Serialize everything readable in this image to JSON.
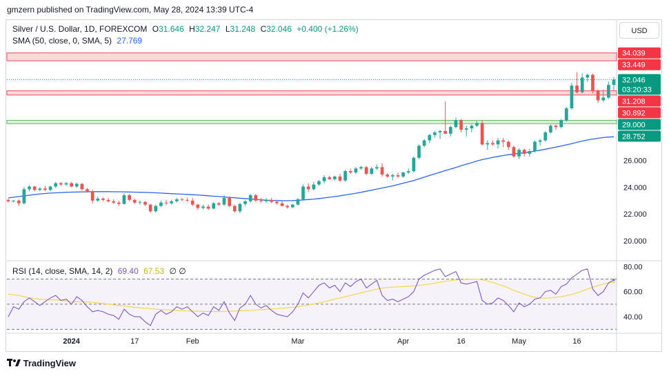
{
  "header": {
    "text": "gmzern published on TradingView.com, May 28, 2024 13:39 UTC-4"
  },
  "legend": {
    "symbol": "Silver / U.S. Dollar, 1D, FOREXCOM",
    "o_label": "O",
    "o": "31.646",
    "h_label": "H",
    "h": "32.247",
    "l_label": "L",
    "l": "31.248",
    "c_label": "C",
    "c": "32.046",
    "change": "+0.400 (+1.26%)",
    "sma_label": "SMA (50, close, 0, SMA, 5)",
    "sma_value": "27.769",
    "rsi_label": "RSI (14, close, SMA, 14, 2)",
    "rsi_value": "69.40",
    "rsi_sma_value": "67.53",
    "rsi_extra": "∅ ∅"
  },
  "currency_button": "USD",
  "price_badges": [
    {
      "text": "34.039",
      "value": 34.039,
      "color": "#f23645"
    },
    {
      "text": "33.449",
      "value": 33.449,
      "color": "#f23645"
    },
    {
      "text": "32.046",
      "value": 32.046,
      "color": "#089981",
      "sub": "03:20:33"
    },
    {
      "text": "31.208",
      "value": 31.208,
      "color": "#f23645"
    },
    {
      "text": "30.892",
      "value": 30.892,
      "color": "#f23645"
    },
    {
      "text": "29.000",
      "value": 29.0,
      "color": "#089981"
    },
    {
      "text": "28.752",
      "value": 28.752,
      "color": "#089981"
    }
  ],
  "footer": {
    "brand": "TradingView",
    "logo": "tradingview-logo-icon"
  },
  "colors": {
    "up": "#26a69a",
    "down": "#ef5350",
    "sma": "#2962ff",
    "rsi": "#7e57c2",
    "rsi_sma": "#f5d847",
    "resistance_fill": "#fbd5d5",
    "resistance_line": "#f23645",
    "support_fill": "#d6f1d8",
    "support_line": "#4caf50"
  },
  "chart_data": [
    {
      "type": "candlestick",
      "title": "Silver / U.S. Dollar, 1D, FOREXCOM",
      "x_ticks": [
        "2024",
        "17",
        "Feb",
        "Mar",
        "Apr",
        "16",
        "May",
        "16"
      ],
      "y_ticks": [
        "20.000",
        "22.000",
        "24.000",
        "26.000"
      ],
      "ylim": [
        18.5,
        36.5
      ],
      "zones": [
        {
          "kind": "resistance",
          "from": 33.449,
          "to": 34.039
        },
        {
          "kind": "resistance",
          "from": 30.892,
          "to": 31.208
        },
        {
          "kind": "support",
          "from": 28.752,
          "to": 29.0
        }
      ],
      "current_price": 32.046,
      "candles": [
        [
          23.05,
          23.15,
          22.85,
          22.95
        ],
        [
          22.95,
          23.05,
          22.85,
          23.0
        ],
        [
          23.0,
          23.1,
          22.6,
          22.8
        ],
        [
          22.8,
          24.0,
          22.7,
          23.85
        ],
        [
          23.85,
          24.15,
          23.7,
          24.05
        ],
        [
          24.05,
          24.1,
          23.7,
          23.8
        ],
        [
          23.8,
          24.0,
          23.7,
          23.9
        ],
        [
          23.9,
          24.1,
          23.7,
          23.8
        ],
        [
          23.8,
          24.1,
          23.7,
          24.05
        ],
        [
          24.05,
          24.4,
          23.95,
          24.3
        ],
        [
          24.3,
          24.4,
          24.1,
          24.2
        ],
        [
          24.2,
          24.4,
          24.1,
          24.3
        ],
        [
          24.3,
          24.4,
          24.0,
          24.05
        ],
        [
          24.05,
          24.35,
          23.95,
          24.25
        ],
        [
          24.25,
          24.3,
          23.75,
          23.85
        ],
        [
          23.85,
          23.95,
          23.6,
          23.7
        ],
        [
          23.7,
          23.8,
          22.8,
          23.0
        ],
        [
          23.0,
          23.3,
          22.9,
          23.15
        ],
        [
          23.15,
          23.25,
          22.95,
          23.05
        ],
        [
          23.05,
          23.2,
          22.85,
          22.95
        ],
        [
          22.95,
          23.1,
          22.75,
          22.85
        ],
        [
          22.85,
          23.0,
          22.6,
          22.75
        ],
        [
          22.75,
          23.55,
          22.7,
          23.4
        ],
        [
          23.4,
          23.5,
          22.95,
          23.05
        ],
        [
          23.05,
          23.15,
          22.75,
          22.85
        ],
        [
          22.85,
          23.0,
          22.7,
          22.9
        ],
        [
          22.9,
          22.95,
          22.6,
          22.7
        ],
        [
          22.7,
          22.75,
          22.1,
          22.2
        ],
        [
          22.2,
          22.7,
          22.1,
          22.6
        ],
        [
          22.6,
          23.0,
          22.5,
          22.85
        ],
        [
          22.85,
          23.05,
          22.65,
          22.8
        ],
        [
          22.8,
          23.05,
          22.7,
          22.95
        ],
        [
          22.95,
          23.2,
          22.85,
          23.1
        ],
        [
          23.1,
          23.2,
          22.95,
          23.05
        ],
        [
          23.05,
          23.2,
          22.9,
          23.0
        ],
        [
          23.0,
          23.2,
          22.6,
          22.7
        ],
        [
          22.7,
          22.75,
          22.3,
          22.45
        ],
        [
          22.45,
          22.7,
          22.35,
          22.55
        ],
        [
          22.55,
          22.7,
          22.3,
          22.4
        ],
        [
          22.4,
          22.9,
          22.35,
          22.8
        ],
        [
          22.8,
          22.9,
          22.6,
          22.7
        ],
        [
          22.7,
          23.4,
          22.6,
          23.2
        ],
        [
          23.2,
          23.3,
          22.5,
          22.6
        ],
        [
          22.6,
          22.7,
          22.1,
          22.2
        ],
        [
          22.2,
          22.85,
          22.05,
          22.75
        ],
        [
          22.75,
          23.05,
          22.6,
          22.95
        ],
        [
          22.95,
          23.5,
          22.85,
          23.4
        ],
        [
          23.4,
          23.5,
          22.9,
          23.0
        ],
        [
          23.0,
          23.2,
          22.85,
          22.95
        ],
        [
          22.95,
          23.2,
          22.85,
          23.05
        ],
        [
          23.05,
          23.2,
          22.8,
          22.9
        ],
        [
          22.9,
          23.0,
          22.7,
          22.8
        ],
        [
          22.8,
          22.95,
          22.55,
          22.6
        ],
        [
          22.6,
          22.7,
          22.4,
          22.5
        ],
        [
          22.5,
          22.75,
          22.45,
          22.7
        ],
        [
          22.7,
          23.2,
          22.65,
          23.1
        ],
        [
          23.1,
          24.2,
          23.0,
          24.05
        ],
        [
          24.05,
          24.3,
          23.65,
          23.85
        ],
        [
          23.85,
          24.4,
          23.75,
          24.2
        ],
        [
          24.2,
          24.55,
          24.1,
          24.45
        ],
        [
          24.45,
          24.9,
          24.3,
          24.75
        ],
        [
          24.75,
          24.85,
          24.55,
          24.6
        ],
        [
          24.6,
          24.85,
          24.5,
          24.8
        ],
        [
          24.8,
          25.0,
          24.4,
          24.5
        ],
        [
          24.5,
          25.3,
          24.4,
          25.2
        ],
        [
          25.2,
          25.4,
          25.0,
          25.1
        ],
        [
          25.1,
          25.5,
          25.0,
          25.4
        ],
        [
          25.4,
          25.6,
          25.3,
          25.5
        ],
        [
          25.5,
          25.6,
          24.9,
          25.0
        ],
        [
          25.0,
          25.5,
          24.9,
          25.4
        ],
        [
          25.4,
          25.7,
          25.3,
          25.5
        ],
        [
          25.5,
          25.8,
          24.8,
          24.95
        ],
        [
          24.95,
          25.05,
          24.7,
          24.8
        ],
        [
          24.8,
          25.0,
          24.5,
          24.9
        ],
        [
          24.9,
          25.1,
          24.7,
          24.8
        ],
        [
          24.8,
          25.15,
          24.7,
          25.1
        ],
        [
          25.1,
          25.4,
          25.0,
          25.2
        ],
        [
          25.2,
          26.3,
          25.1,
          26.2
        ],
        [
          26.2,
          27.2,
          26.1,
          27.1
        ],
        [
          27.1,
          27.6,
          27.0,
          27.5
        ],
        [
          27.5,
          28.0,
          27.3,
          27.9
        ],
        [
          27.9,
          28.2,
          27.7,
          28.1
        ],
        [
          28.1,
          28.3,
          27.6,
          28.2
        ],
        [
          28.2,
          30.4,
          28.0,
          28.0
        ],
        [
          28.0,
          28.6,
          27.8,
          28.5
        ],
        [
          28.5,
          29.2,
          28.4,
          29.0
        ],
        [
          29.0,
          29.1,
          28.1,
          28.3
        ],
        [
          28.3,
          28.6,
          27.8,
          28.4
        ],
        [
          28.4,
          28.7,
          28.1,
          28.6
        ],
        [
          28.6,
          28.95,
          28.5,
          28.8
        ],
        [
          28.8,
          29.0,
          27.1,
          27.2
        ],
        [
          27.2,
          27.5,
          26.8,
          27.3
        ],
        [
          27.3,
          27.5,
          27.1,
          27.2
        ],
        [
          27.2,
          27.7,
          26.9,
          27.5
        ],
        [
          27.5,
          27.7,
          27.0,
          27.4
        ],
        [
          27.4,
          27.5,
          26.8,
          27.0
        ],
        [
          27.0,
          27.1,
          26.2,
          26.3
        ],
        [
          26.3,
          26.9,
          26.1,
          26.8
        ],
        [
          26.8,
          26.9,
          26.3,
          26.5
        ],
        [
          26.5,
          26.85,
          26.3,
          26.7
        ],
        [
          26.7,
          27.5,
          26.6,
          27.4
        ],
        [
          27.4,
          27.6,
          27.1,
          27.5
        ],
        [
          27.5,
          28.2,
          27.4,
          28.1
        ],
        [
          28.1,
          28.7,
          28.0,
          28.6
        ],
        [
          28.6,
          28.7,
          28.3,
          28.5
        ],
        [
          28.5,
          29.1,
          28.4,
          29.0
        ],
        [
          29.0,
          30.0,
          28.9,
          29.9
        ],
        [
          29.9,
          31.8,
          29.8,
          31.6
        ],
        [
          31.6,
          32.6,
          31.0,
          31.1
        ],
        [
          31.1,
          32.5,
          31.0,
          32.2
        ],
        [
          32.2,
          32.5,
          31.9,
          32.4
        ],
        [
          32.4,
          32.5,
          31.0,
          31.2
        ],
        [
          31.2,
          31.3,
          30.3,
          30.5
        ],
        [
          30.5,
          31.3,
          30.4,
          30.7
        ],
        [
          30.7,
          31.9,
          30.6,
          31.646
        ],
        [
          31.646,
          32.247,
          31.248,
          32.046
        ]
      ],
      "series": [
        {
          "name": "SMA (50, close, 0, SMA, 5)",
          "values": [
            23.2,
            23.25,
            23.3,
            23.35,
            23.4,
            23.45,
            23.5,
            23.53,
            23.56,
            23.58,
            23.6,
            23.62,
            23.63,
            23.64,
            23.65,
            23.66,
            23.67,
            23.67,
            23.67,
            23.67,
            23.66,
            23.66,
            23.65,
            23.64,
            23.63,
            23.62,
            23.61,
            23.6,
            23.58,
            23.56,
            23.54,
            23.52,
            23.5,
            23.48,
            23.46,
            23.44,
            23.42,
            23.39,
            23.36,
            23.33,
            23.3,
            23.27,
            23.24,
            23.21,
            23.18,
            23.15,
            23.12,
            23.09,
            23.06,
            23.03,
            23.01,
            23.0,
            22.99,
            22.99,
            23.0,
            23.02,
            23.05,
            23.08,
            23.11,
            23.15,
            23.2,
            23.25,
            23.3,
            23.36,
            23.42,
            23.48,
            23.55,
            23.62,
            23.7,
            23.78,
            23.86,
            23.94,
            24.02,
            24.1,
            24.2,
            24.3,
            24.4,
            24.5,
            24.62,
            24.75,
            24.88,
            25.0,
            25.12,
            25.24,
            25.36,
            25.48,
            25.6,
            25.72,
            25.84,
            25.96,
            26.06,
            26.15,
            26.23,
            26.3,
            26.37,
            26.43,
            26.48,
            26.53,
            26.58,
            26.63,
            26.7,
            26.77,
            26.84,
            26.92,
            27.0,
            27.08,
            27.17,
            27.26,
            27.36,
            27.45,
            27.53,
            27.6,
            27.66,
            27.71,
            27.75,
            27.769
          ]
        }
      ]
    },
    {
      "type": "line",
      "title": "RSI (14, close, SMA, 14, 2)",
      "y_ticks": [
        "40.00",
        "60.00",
        "80.00"
      ],
      "ylim": [
        28,
        84
      ],
      "bands": [
        30,
        50,
        70
      ],
      "series": [
        {
          "name": "RSI",
          "values": [
            40,
            48,
            46,
            52,
            55,
            52,
            49,
            52,
            55,
            57,
            53,
            54,
            50,
            56,
            53,
            48,
            44,
            45,
            44,
            42,
            41,
            38,
            46,
            42,
            40,
            40,
            36,
            33,
            42,
            45,
            42,
            44,
            48,
            46,
            48,
            44,
            40,
            43,
            41,
            48,
            45,
            52,
            43,
            37,
            47,
            50,
            57,
            50,
            47,
            49,
            45,
            42,
            41,
            40,
            44,
            50,
            59,
            55,
            60,
            65,
            67,
            63,
            65,
            60,
            67,
            64,
            68,
            70,
            63,
            66,
            69,
            57,
            53,
            54,
            52,
            54,
            56,
            60,
            70,
            73,
            75,
            77,
            78,
            72,
            74,
            76,
            67,
            66,
            67,
            68,
            53,
            50,
            51,
            55,
            53,
            49,
            44,
            51,
            48,
            50,
            54,
            55,
            60,
            61,
            58,
            64,
            66,
            71,
            74,
            77,
            78,
            62,
            57,
            60,
            67,
            69.4
          ]
        },
        {
          "name": "SMA",
          "values": [
            58,
            57.5,
            57,
            56,
            55,
            54.5,
            54,
            53.8,
            53.5,
            53.5,
            53,
            52.5,
            52,
            52,
            52,
            51.8,
            51.5,
            51,
            50.5,
            50,
            49.5,
            49,
            48.5,
            48,
            47.5,
            47,
            46.8,
            46.5,
            46,
            45.8,
            45.5,
            45.3,
            45,
            44.8,
            44.6,
            44.5,
            44.4,
            44.3,
            44.2,
            44.2,
            44.2,
            44.3,
            44.4,
            44.6,
            44.8,
            45,
            45.2,
            45.4,
            45.6,
            45.9,
            46.2,
            46.5,
            46.8,
            47.2,
            47.6,
            48,
            48.7,
            49.4,
            50.2,
            51,
            52,
            53,
            54,
            55,
            56,
            57,
            58,
            59,
            60,
            61,
            62,
            62.8,
            63.3,
            63.6,
            63.8,
            64,
            64.3,
            64.6,
            65,
            65.5,
            66,
            66.8,
            67.5,
            68.2,
            68.8,
            69.3,
            69.6,
            69.8,
            69.9,
            70,
            69.5,
            68.5,
            67.3,
            66,
            64.5,
            63,
            61,
            59.5,
            58,
            56.5,
            55.5,
            55,
            54.8,
            55,
            55.5,
            56,
            56.8,
            57.8,
            59,
            60.5,
            62,
            63.5,
            64.8,
            66,
            67,
            67.53
          ]
        }
      ]
    }
  ]
}
